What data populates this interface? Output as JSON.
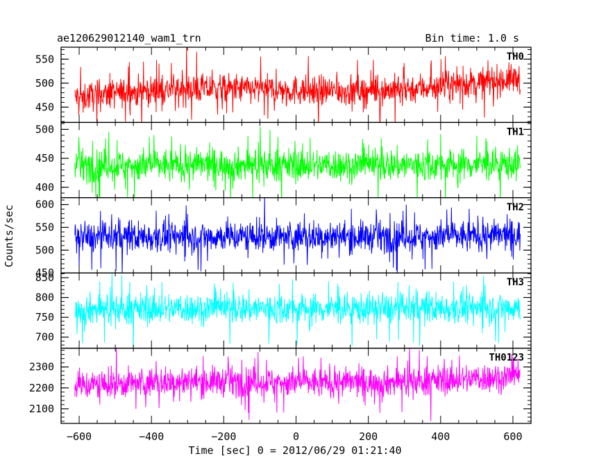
{
  "chart_data": {
    "type": "line",
    "title": "ae120629012140_wam1_trn",
    "bin_time": "Bin time: 1.0 s",
    "xlabel": "Time [sec] 0 = 2012/06/29 01:21:40",
    "ylabel": "Counts/sec",
    "xlim": [
      -650,
      650
    ],
    "xticks": [
      -600,
      -400,
      -200,
      0,
      200,
      400,
      600
    ],
    "x_range_data": [
      -612,
      620
    ],
    "panels": [
      {
        "name": "TH0",
        "color": "#ff0000",
        "ylim": [
          418,
          575
        ],
        "yticks": [
          450,
          500,
          550
        ],
        "mean_start": 470,
        "mean_end": 505,
        "noise": 22,
        "spike": 55
      },
      {
        "name": "TH1",
        "color": "#00ff00",
        "ylim": [
          382,
          512
        ],
        "yticks": [
          400,
          450,
          500
        ],
        "mean_start": 437,
        "mean_end": 440,
        "noise": 20,
        "spike": 50
      },
      {
        "name": "TH2",
        "color": "#0000ff",
        "ylim": [
          450,
          615
        ],
        "yticks": [
          450,
          500,
          550,
          600
        ],
        "mean_start": 528,
        "mean_end": 532,
        "noise": 24,
        "spike": 60
      },
      {
        "name": "TH3",
        "color": "#00ffff",
        "ylim": [
          672,
          862
        ],
        "yticks": [
          700,
          750,
          800,
          850
        ],
        "mean_start": 770,
        "mean_end": 775,
        "noise": 28,
        "spike": 70
      },
      {
        "name": "TH0123",
        "color": "#ff00ff",
        "ylim": [
          2030,
          2390
        ],
        "yticks": [
          2100,
          2200,
          2300
        ],
        "mean_start": 2210,
        "mean_end": 2250,
        "noise": 50,
        "spike": 120
      }
    ]
  }
}
